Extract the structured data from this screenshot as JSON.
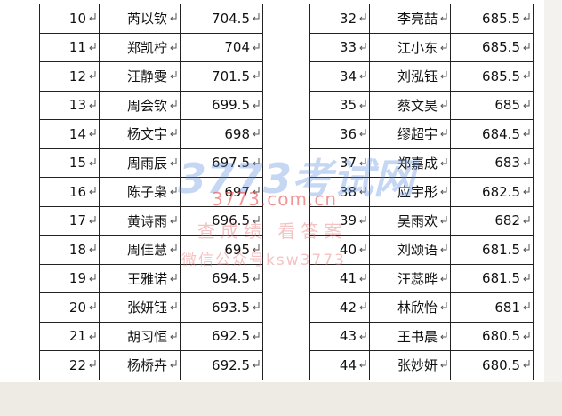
{
  "tables": {
    "left": {
      "rows": [
        [
          "10",
          "芮以钦",
          "704.5"
        ],
        [
          "11",
          "郑凯柠",
          "704"
        ],
        [
          "12",
          "汪静雯",
          "701.5"
        ],
        [
          "13",
          "周会钦",
          "699.5"
        ],
        [
          "14",
          "杨文宇",
          "698"
        ],
        [
          "15",
          "周雨辰",
          "697.5"
        ],
        [
          "16",
          "陈子枭",
          "697"
        ],
        [
          "17",
          "黄诗雨",
          "696.5"
        ],
        [
          "18",
          "周佳慧",
          "695"
        ],
        [
          "19",
          "王雅诺",
          "694.5"
        ],
        [
          "20",
          "张妍钰",
          "693.5"
        ],
        [
          "21",
          "胡习恒",
          "692.5"
        ],
        [
          "22",
          "杨桥卉",
          "692.5"
        ]
      ]
    },
    "right": {
      "rows": [
        [
          "32",
          "李亮喆",
          "685.5"
        ],
        [
          "33",
          "江小东",
          "685.5"
        ],
        [
          "34",
          "刘泓钰",
          "685.5"
        ],
        [
          "35",
          "蔡文昊",
          "685"
        ],
        [
          "36",
          "缪超宇",
          "684.5"
        ],
        [
          "37",
          "郑嘉成",
          "683"
        ],
        [
          "38",
          "应宇彤",
          "682.5"
        ],
        [
          "39",
          "吴雨欢",
          "682"
        ],
        [
          "40",
          "刘颂语",
          "681.5"
        ],
        [
          "41",
          "汪蕊晔",
          "681.5"
        ],
        [
          "42",
          "林欣怡",
          "681"
        ],
        [
          "43",
          "王书晨",
          "680.5"
        ],
        [
          "44",
          "张妙妍",
          "680.5"
        ]
      ]
    }
  },
  "watermark": {
    "logo": "3773考试网",
    "url": "3773.com.cn",
    "slogan": "查成绩 看答案",
    "wechat": "微信公众号ksw3773"
  }
}
